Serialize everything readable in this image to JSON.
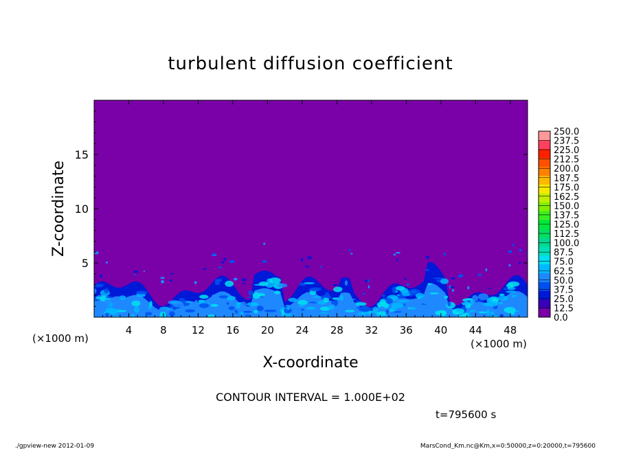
{
  "chart_data": {
    "type": "heatmap",
    "title": "turbulent diffusion coefficient",
    "xlabel": "X-coordinate",
    "ylabel": "Z-coordinate",
    "x_unit_label": "(×1000 m)",
    "y_unit_label": "(×1000 m)",
    "x_ticks": [
      "4",
      "8",
      "12",
      "16",
      "20",
      "24",
      "28",
      "32",
      "36",
      "40",
      "44",
      "48"
    ],
    "y_ticks": [
      "5",
      "10",
      "15"
    ],
    "xlim": [
      0,
      50
    ],
    "ylim": [
      0,
      20
    ],
    "colorbar_levels": [
      "0.0",
      "12.5",
      "25.0",
      "37.5",
      "50.0",
      "62.5",
      "75.0",
      "87.5",
      "100.0",
      "112.5",
      "125.0",
      "137.5",
      "150.0",
      "162.5",
      "175.0",
      "187.5",
      "200.0",
      "212.5",
      "225.0",
      "237.5",
      "250.0"
    ],
    "colorbar_colors": [
      "#7a00a8",
      "#3a00b8",
      "#0018d8",
      "#0050f0",
      "#1e88ff",
      "#00b8ff",
      "#00e0f0",
      "#00e0b8",
      "#00d890",
      "#00e060",
      "#00e83a",
      "#38f020",
      "#80f000",
      "#c0f000",
      "#f8e800",
      "#ffb800",
      "#ff8000",
      "#ff5000",
      "#ff2000",
      "#ff4060",
      "#ff9898"
    ],
    "background_level": "0.0",
    "contour_interval_text": "CONTOUR INTERVAL = 1.000E+02",
    "time_text": "t=795600 s",
    "footer_left": "./gpview-new   2012-01-09",
    "footer_right": "MarsCond_Km.nc@Km,x=0:50000,z=0:20000,t=795600"
  }
}
